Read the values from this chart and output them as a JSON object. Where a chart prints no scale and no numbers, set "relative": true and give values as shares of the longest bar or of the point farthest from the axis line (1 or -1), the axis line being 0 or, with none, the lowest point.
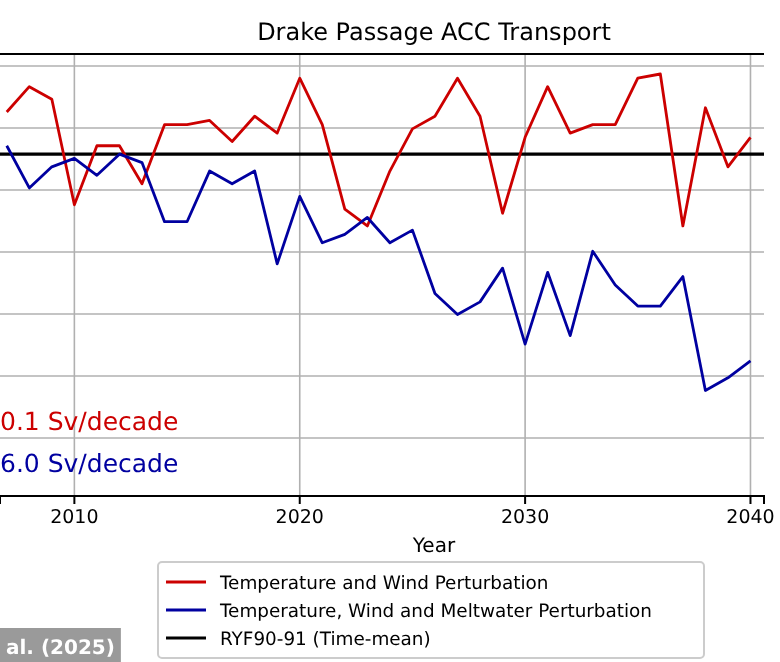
{
  "chart_data": {
    "type": "line",
    "title": "Drake Passage ACC Transport",
    "xlabel": "Year",
    "relative": true,
    "grid": true,
    "legend": "bottom",
    "line_style": "solid",
    "x": [
      2007,
      2008,
      2009,
      2010,
      2011,
      2012,
      2013,
      2014,
      2015,
      2016,
      2017,
      2018,
      2019,
      2020,
      2021,
      2022,
      2023,
      2024,
      2025,
      2026,
      2027,
      2028,
      2029,
      2030,
      2031,
      2032,
      2033,
      2034,
      2035,
      2036,
      2037,
      2038,
      2039,
      2040
    ],
    "xlim": [
      2006.7,
      2040.6
    ],
    "xticks": [
      2010,
      2020,
      2030,
      2040
    ],
    "series": [
      {
        "name": "Temperature and Wind Perturbation",
        "color": "#cc0000",
        "values": [
          0.91,
          0.97,
          0.94,
          0.69,
          0.83,
          0.83,
          0.74,
          0.88,
          0.88,
          0.89,
          0.84,
          0.9,
          0.86,
          0.99,
          0.88,
          0.68,
          0.64,
          0.77,
          0.87,
          0.9,
          0.99,
          0.9,
          0.67,
          0.85,
          0.97,
          0.86,
          0.88,
          0.88,
          0.99,
          1,
          0.64,
          0.92,
          0.78,
          0.85
        ]
      },
      {
        "name": "Temperature, Wind and Meltwater Perturbation",
        "color": "#0000a0",
        "values": [
          0.83,
          0.73,
          0.78,
          0.8,
          0.76,
          0.81,
          0.79,
          0.65,
          0.65,
          0.77,
          0.74,
          0.77,
          0.55,
          0.71,
          0.6,
          0.62,
          0.66,
          0.6,
          0.63,
          0.48,
          0.43,
          0.46,
          0.54,
          0.36,
          0.53,
          0.38,
          0.58,
          0.5,
          0.45,
          0.45,
          0.52,
          0.25,
          0.28,
          0.32
        ]
      }
    ],
    "ref_lines": [
      {
        "axis": "y",
        "value": 0.81,
        "label": "RYF90-91 (Time-mean)",
        "color": "#000000"
      }
    ],
    "annotations": [
      "0.1 Sv/decade",
      "6.0 Sv/decade",
      "al. (2025)"
    ]
  }
}
